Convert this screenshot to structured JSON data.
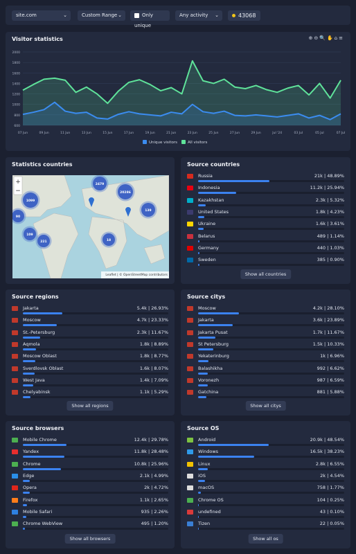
{
  "toolbar": {
    "site": "site.com",
    "range": "Custom Range",
    "only_unique": "Only unique",
    "activity": "Any activity",
    "count": "43068"
  },
  "chart_data": {
    "type": "line",
    "title": "Visitor statistics",
    "categories": [
      "07 Jun",
      null,
      "09 Jun",
      null,
      "11 Jun",
      null,
      "13 Jun",
      null,
      "15 Jun",
      null,
      "17 Jun",
      null,
      "19 Jun",
      null,
      "21 Jun",
      null,
      "23 Jun",
      null,
      "25 Jun",
      null,
      "27 Jun",
      null,
      "29 Jun",
      null,
      "Jul '24",
      null,
      "03 Jul",
      null,
      "05 Jul",
      null,
      "07 Jul"
    ],
    "series": [
      {
        "name": "All visitors",
        "color": "#5fe39a",
        "values": [
          1270,
          1380,
          1480,
          1500,
          1460,
          1230,
          1330,
          1200,
          1020,
          1250,
          1420,
          1470,
          1380,
          1260,
          1320,
          1200,
          1830,
          1450,
          1400,
          1480,
          1330,
          1300,
          1360,
          1280,
          1230,
          1310,
          1360,
          1180,
          1400,
          1120,
          1460
        ]
      },
      {
        "name": "Unique visitors",
        "color": "#3b8cf0",
        "values": [
          810,
          850,
          900,
          1040,
          870,
          830,
          850,
          740,
          720,
          810,
          860,
          820,
          800,
          780,
          850,
          820,
          1000,
          860,
          830,
          870,
          790,
          780,
          800,
          780,
          760,
          790,
          820,
          740,
          790,
          710,
          820
        ]
      }
    ],
    "ylim": [
      600,
      2000
    ],
    "yticks": [
      600,
      800,
      1000,
      1200,
      1400,
      1600,
      1800,
      2000
    ],
    "grid": true
  },
  "map": {
    "title": "Statistics countries",
    "zoom_in": "+",
    "zoom_out": "−",
    "attribution": "Leaflet | © OpenStreetMap contributors",
    "clusters": [
      {
        "label": "2479"
      },
      {
        "label": "20286"
      },
      {
        "label": "1099"
      },
      {
        "label": "90"
      },
      {
        "label": "109"
      },
      {
        "label": "221"
      },
      {
        "label": "139"
      },
      {
        "label": "18"
      }
    ]
  },
  "countries": {
    "title": "Source countries",
    "button": "Show all countries",
    "items": [
      {
        "name": "Russia",
        "stat": "21k | 48.89%",
        "share": 48.89
      },
      {
        "name": "Indonesia",
        "stat": "11.2k | 25.94%",
        "share": 25.94
      },
      {
        "name": "Kazakhstan",
        "stat": "2.3k | 5.32%",
        "share": 5.32
      },
      {
        "name": "United States",
        "stat": "1.8k | 4.23%",
        "share": 4.23
      },
      {
        "name": "Ukraine",
        "stat": "1.6k | 3.61%",
        "share": 3.61
      },
      {
        "name": "Belarus",
        "stat": "489 | 1.14%",
        "share": 1.14
      },
      {
        "name": "Germany",
        "stat": "440 | 1.03%",
        "share": 1.03
      },
      {
        "name": "Sweden",
        "stat": "385 | 0.90%",
        "share": 0.9
      }
    ]
  },
  "regions": {
    "title": "Source regions",
    "button": "Show all regions",
    "items": [
      {
        "name": "Jakarta",
        "stat": "5.4k | 26.93%",
        "share": 26.93
      },
      {
        "name": "Moscow",
        "stat": "4.7k | 23.33%",
        "share": 23.33
      },
      {
        "name": "St.-Petersburg",
        "stat": "2.3k | 11.67%",
        "share": 11.67
      },
      {
        "name": "Aqmola",
        "stat": "1.8k | 8.89%",
        "share": 8.89
      },
      {
        "name": "Moscow Oblast",
        "stat": "1.8k | 8.77%",
        "share": 8.77
      },
      {
        "name": "Sverdlovsk Oblast",
        "stat": "1.6k | 8.07%",
        "share": 8.07
      },
      {
        "name": "West Java",
        "stat": "1.4k | 7.09%",
        "share": 7.09
      },
      {
        "name": "Chelyabinsk",
        "stat": "1.1k | 5.29%",
        "share": 5.29
      }
    ]
  },
  "citys": {
    "title": "Source citys",
    "button": "Show all citys",
    "items": [
      {
        "name": "Moscow",
        "stat": "4.2k | 28.10%",
        "share": 28.1
      },
      {
        "name": "Jakarta",
        "stat": "3.6k | 23.89%",
        "share": 23.89
      },
      {
        "name": "Jakarta Pusat",
        "stat": "1.7k | 11.67%",
        "share": 11.67
      },
      {
        "name": "St Petersburg",
        "stat": "1.5k | 10.33%",
        "share": 10.33
      },
      {
        "name": "Yekaterinburg",
        "stat": "1k | 6.96%",
        "share": 6.96
      },
      {
        "name": "Balashikha",
        "stat": "992 | 6.62%",
        "share": 6.62
      },
      {
        "name": "Voronezh",
        "stat": "987 | 6.59%",
        "share": 6.59
      },
      {
        "name": "Gatchina",
        "stat": "881 | 5.88%",
        "share": 5.88
      }
    ]
  },
  "browsers": {
    "title": "Source browsers",
    "button": "Show all browsers",
    "items": [
      {
        "name": "Mobile Chrome",
        "stat": "12.4k | 29.78%",
        "share": 29.78
      },
      {
        "name": "Yandex",
        "stat": "11.8k | 28.48%",
        "share": 28.48
      },
      {
        "name": "Chrome",
        "stat": "10.8k | 25.96%",
        "share": 25.96
      },
      {
        "name": "Edge",
        "stat": "2.1k | 4.99%",
        "share": 4.99
      },
      {
        "name": "Opera",
        "stat": "2k | 4.72%",
        "share": 4.72
      },
      {
        "name": "Firefox",
        "stat": "1.1k | 2.65%",
        "share": 2.65
      },
      {
        "name": "Mobile Safari",
        "stat": "935 | 2.26%",
        "share": 2.26
      },
      {
        "name": "Chrome WebView",
        "stat": "495 | 1.20%",
        "share": 1.2
      }
    ]
  },
  "os": {
    "title": "Source OS",
    "button": "Show all os",
    "items": [
      {
        "name": "Android",
        "stat": "20.9k | 48.54%",
        "share": 48.54
      },
      {
        "name": "Windows",
        "stat": "16.5k | 38.23%",
        "share": 38.23
      },
      {
        "name": "Linux",
        "stat": "2.8k | 6.55%",
        "share": 6.55
      },
      {
        "name": "iOS",
        "stat": "2k | 4.54%",
        "share": 4.54
      },
      {
        "name": "macOS",
        "stat": "758 | 1.77%",
        "share": 1.77
      },
      {
        "name": "Chrome OS",
        "stat": "104 | 0.25%",
        "share": 0.25
      },
      {
        "name": "undefined",
        "stat": "43 | 0.10%",
        "share": 0.1
      },
      {
        "name": "Tizen",
        "stat": "22 | 0.05%",
        "share": 0.05
      }
    ]
  }
}
